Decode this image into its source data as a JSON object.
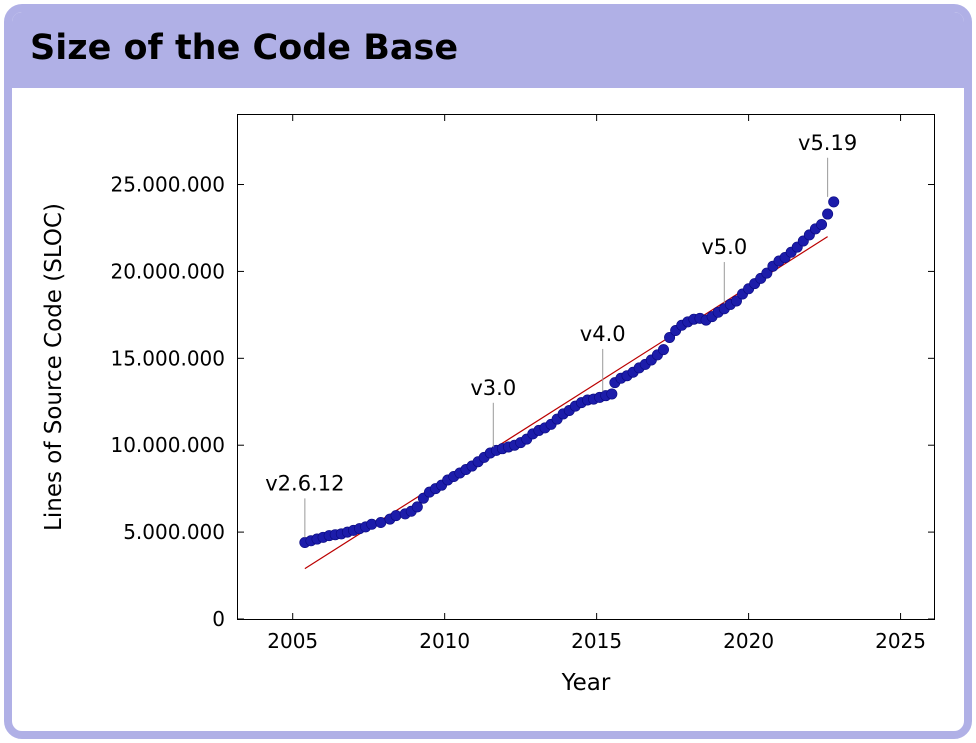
{
  "frame": {
    "title": "Size of the Code Base"
  },
  "colors": {
    "frame": "#b0b0e6",
    "points": "#1c1caa",
    "trend": "#bb0000"
  },
  "chart_data": {
    "type": "scatter",
    "title": "",
    "xlabel": "Year",
    "ylabel": "Lines of Source Code (SLOC)",
    "xlim": [
      2003.2,
      2026.1
    ],
    "ylim": [
      0,
      29000000
    ],
    "x_ticks": [
      2005,
      2010,
      2015,
      2020,
      2025
    ],
    "x_tick_labels": [
      "2005",
      "2010",
      "2015",
      "2020",
      "2025"
    ],
    "y_ticks": [
      0,
      5000000,
      10000000,
      15000000,
      20000000,
      25000000
    ],
    "y_tick_labels": [
      "0",
      "5.000.000",
      "10.000.000",
      "15.000.000",
      "20.000.000",
      "25.000.000"
    ],
    "grid": false,
    "series": [
      {
        "values": [
          [
            2005.4,
            4400000
          ],
          [
            2005.6,
            4500000
          ],
          [
            2005.8,
            4600000
          ],
          [
            2006.0,
            4700000
          ],
          [
            2006.2,
            4800000
          ],
          [
            2006.4,
            4850000
          ],
          [
            2006.6,
            4900000
          ],
          [
            2006.8,
            5000000
          ],
          [
            2007.0,
            5100000
          ],
          [
            2007.2,
            5200000
          ],
          [
            2007.4,
            5300000
          ],
          [
            2007.6,
            5450000
          ],
          [
            2007.9,
            5550000
          ],
          [
            2008.2,
            5750000
          ],
          [
            2008.4,
            5950000
          ],
          [
            2008.7,
            6050000
          ],
          [
            2008.9,
            6200000
          ],
          [
            2009.1,
            6450000
          ],
          [
            2009.3,
            6950000
          ],
          [
            2009.5,
            7300000
          ],
          [
            2009.7,
            7500000
          ],
          [
            2009.9,
            7700000
          ],
          [
            2010.1,
            8000000
          ],
          [
            2010.3,
            8200000
          ],
          [
            2010.5,
            8400000
          ],
          [
            2010.7,
            8600000
          ],
          [
            2010.9,
            8800000
          ],
          [
            2011.1,
            9050000
          ],
          [
            2011.3,
            9300000
          ],
          [
            2011.5,
            9550000
          ],
          [
            2011.7,
            9700000
          ],
          [
            2011.9,
            9800000
          ],
          [
            2012.1,
            9900000
          ],
          [
            2012.3,
            10000000
          ],
          [
            2012.5,
            10150000
          ],
          [
            2012.7,
            10350000
          ],
          [
            2012.9,
            10650000
          ],
          [
            2013.1,
            10850000
          ],
          [
            2013.3,
            11000000
          ],
          [
            2013.5,
            11200000
          ],
          [
            2013.7,
            11500000
          ],
          [
            2013.9,
            11800000
          ],
          [
            2014.1,
            12000000
          ],
          [
            2014.3,
            12250000
          ],
          [
            2014.5,
            12450000
          ],
          [
            2014.7,
            12600000
          ],
          [
            2014.9,
            12650000
          ],
          [
            2015.1,
            12750000
          ],
          [
            2015.3,
            12850000
          ],
          [
            2015.5,
            12950000
          ],
          [
            2015.6,
            13600000
          ],
          [
            2015.8,
            13850000
          ],
          [
            2016.0,
            14000000
          ],
          [
            2016.2,
            14200000
          ],
          [
            2016.4,
            14450000
          ],
          [
            2016.6,
            14650000
          ],
          [
            2016.8,
            14900000
          ],
          [
            2017.0,
            15200000
          ],
          [
            2017.2,
            15500000
          ],
          [
            2017.4,
            16200000
          ],
          [
            2017.6,
            16600000
          ],
          [
            2017.8,
            16900000
          ],
          [
            2018.0,
            17100000
          ],
          [
            2018.2,
            17250000
          ],
          [
            2018.4,
            17300000
          ],
          [
            2018.6,
            17200000
          ],
          [
            2018.8,
            17400000
          ],
          [
            2019.0,
            17650000
          ],
          [
            2019.2,
            17850000
          ],
          [
            2019.4,
            18100000
          ],
          [
            2019.6,
            18300000
          ],
          [
            2019.8,
            18700000
          ],
          [
            2020.0,
            19000000
          ],
          [
            2020.2,
            19300000
          ],
          [
            2020.4,
            19600000
          ],
          [
            2020.6,
            19900000
          ],
          [
            2020.8,
            20300000
          ],
          [
            2021.0,
            20600000
          ],
          [
            2021.2,
            20800000
          ],
          [
            2021.4,
            21100000
          ],
          [
            2021.6,
            21400000
          ],
          [
            2021.8,
            21750000
          ],
          [
            2022.0,
            22100000
          ],
          [
            2022.2,
            22450000
          ],
          [
            2022.4,
            22700000
          ],
          [
            2022.6,
            23300000
          ],
          [
            2022.8,
            24000000
          ]
        ]
      }
    ],
    "trend": {
      "from": [
        2005.4,
        2900000
      ],
      "to": [
        2022.6,
        22000000
      ]
    },
    "annotations": [
      {
        "label": "v2.6.12",
        "x": 2005.4,
        "y": 4400000,
        "label_y": 7400000
      },
      {
        "label": "v3.0",
        "x": 2011.6,
        "y": 9600000,
        "label_y": 12900000
      },
      {
        "label": "v4.0",
        "x": 2015.2,
        "y": 12800000,
        "label_y": 16000000
      },
      {
        "label": "v5.0",
        "x": 2019.2,
        "y": 17900000,
        "label_y": 21000000
      },
      {
        "label": "v5.19",
        "x": 2022.6,
        "y": 24000000,
        "label_y": 27000000
      }
    ]
  }
}
